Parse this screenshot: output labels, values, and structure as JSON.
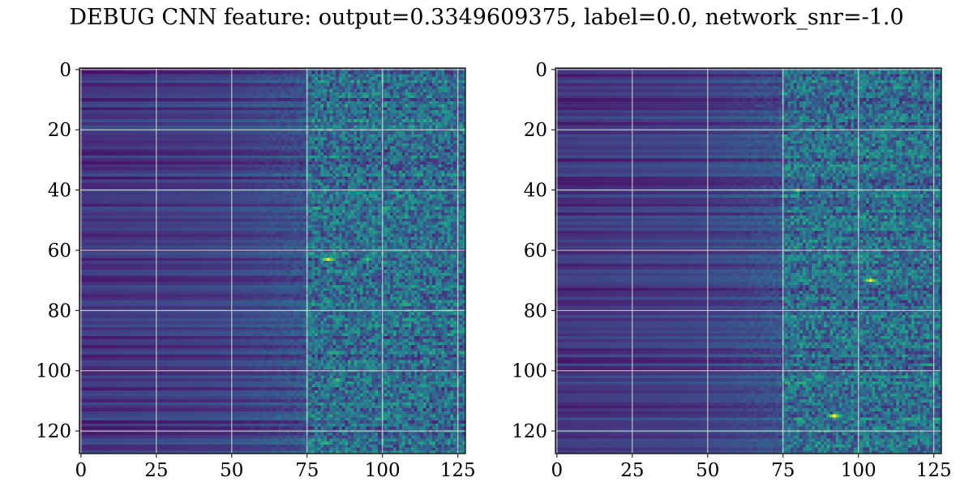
{
  "figure": {
    "title": "DEBUG CNN feature: output=0.3349609375, label=0.0, network_snr=-1.0"
  },
  "chart_data": [
    {
      "type": "heatmap",
      "title": "",
      "xlabel": "",
      "ylabel": "",
      "rows": 128,
      "cols": 128,
      "xlim": [
        -0.5,
        127.5
      ],
      "ylim": [
        127.5,
        -0.5
      ],
      "xticks": [
        0,
        25,
        50,
        75,
        100,
        125
      ],
      "yticks": [
        0,
        20,
        40,
        60,
        80,
        100,
        120
      ],
      "grid": true,
      "colormap": "viridis",
      "hotspots": [
        {
          "x": 82,
          "y": 63,
          "intensity": 1.0
        },
        {
          "x": 95,
          "y": 63,
          "intensity": 0.7
        },
        {
          "x": 85,
          "y": 103,
          "intensity": 0.7
        }
      ]
    },
    {
      "type": "heatmap",
      "title": "",
      "xlabel": "",
      "ylabel": "",
      "rows": 128,
      "cols": 128,
      "xlim": [
        -0.5,
        127.5
      ],
      "ylim": [
        127.5,
        -0.5
      ],
      "xticks": [
        0,
        25,
        50,
        75,
        100,
        125
      ],
      "yticks": [
        0,
        20,
        40,
        60,
        80,
        100,
        120
      ],
      "grid": true,
      "colormap": "viridis",
      "hotspots": [
        {
          "x": 104,
          "y": 70,
          "intensity": 1.0
        },
        {
          "x": 92,
          "y": 115,
          "intensity": 1.0
        },
        {
          "x": 80,
          "y": 40,
          "intensity": 0.8
        }
      ]
    }
  ]
}
